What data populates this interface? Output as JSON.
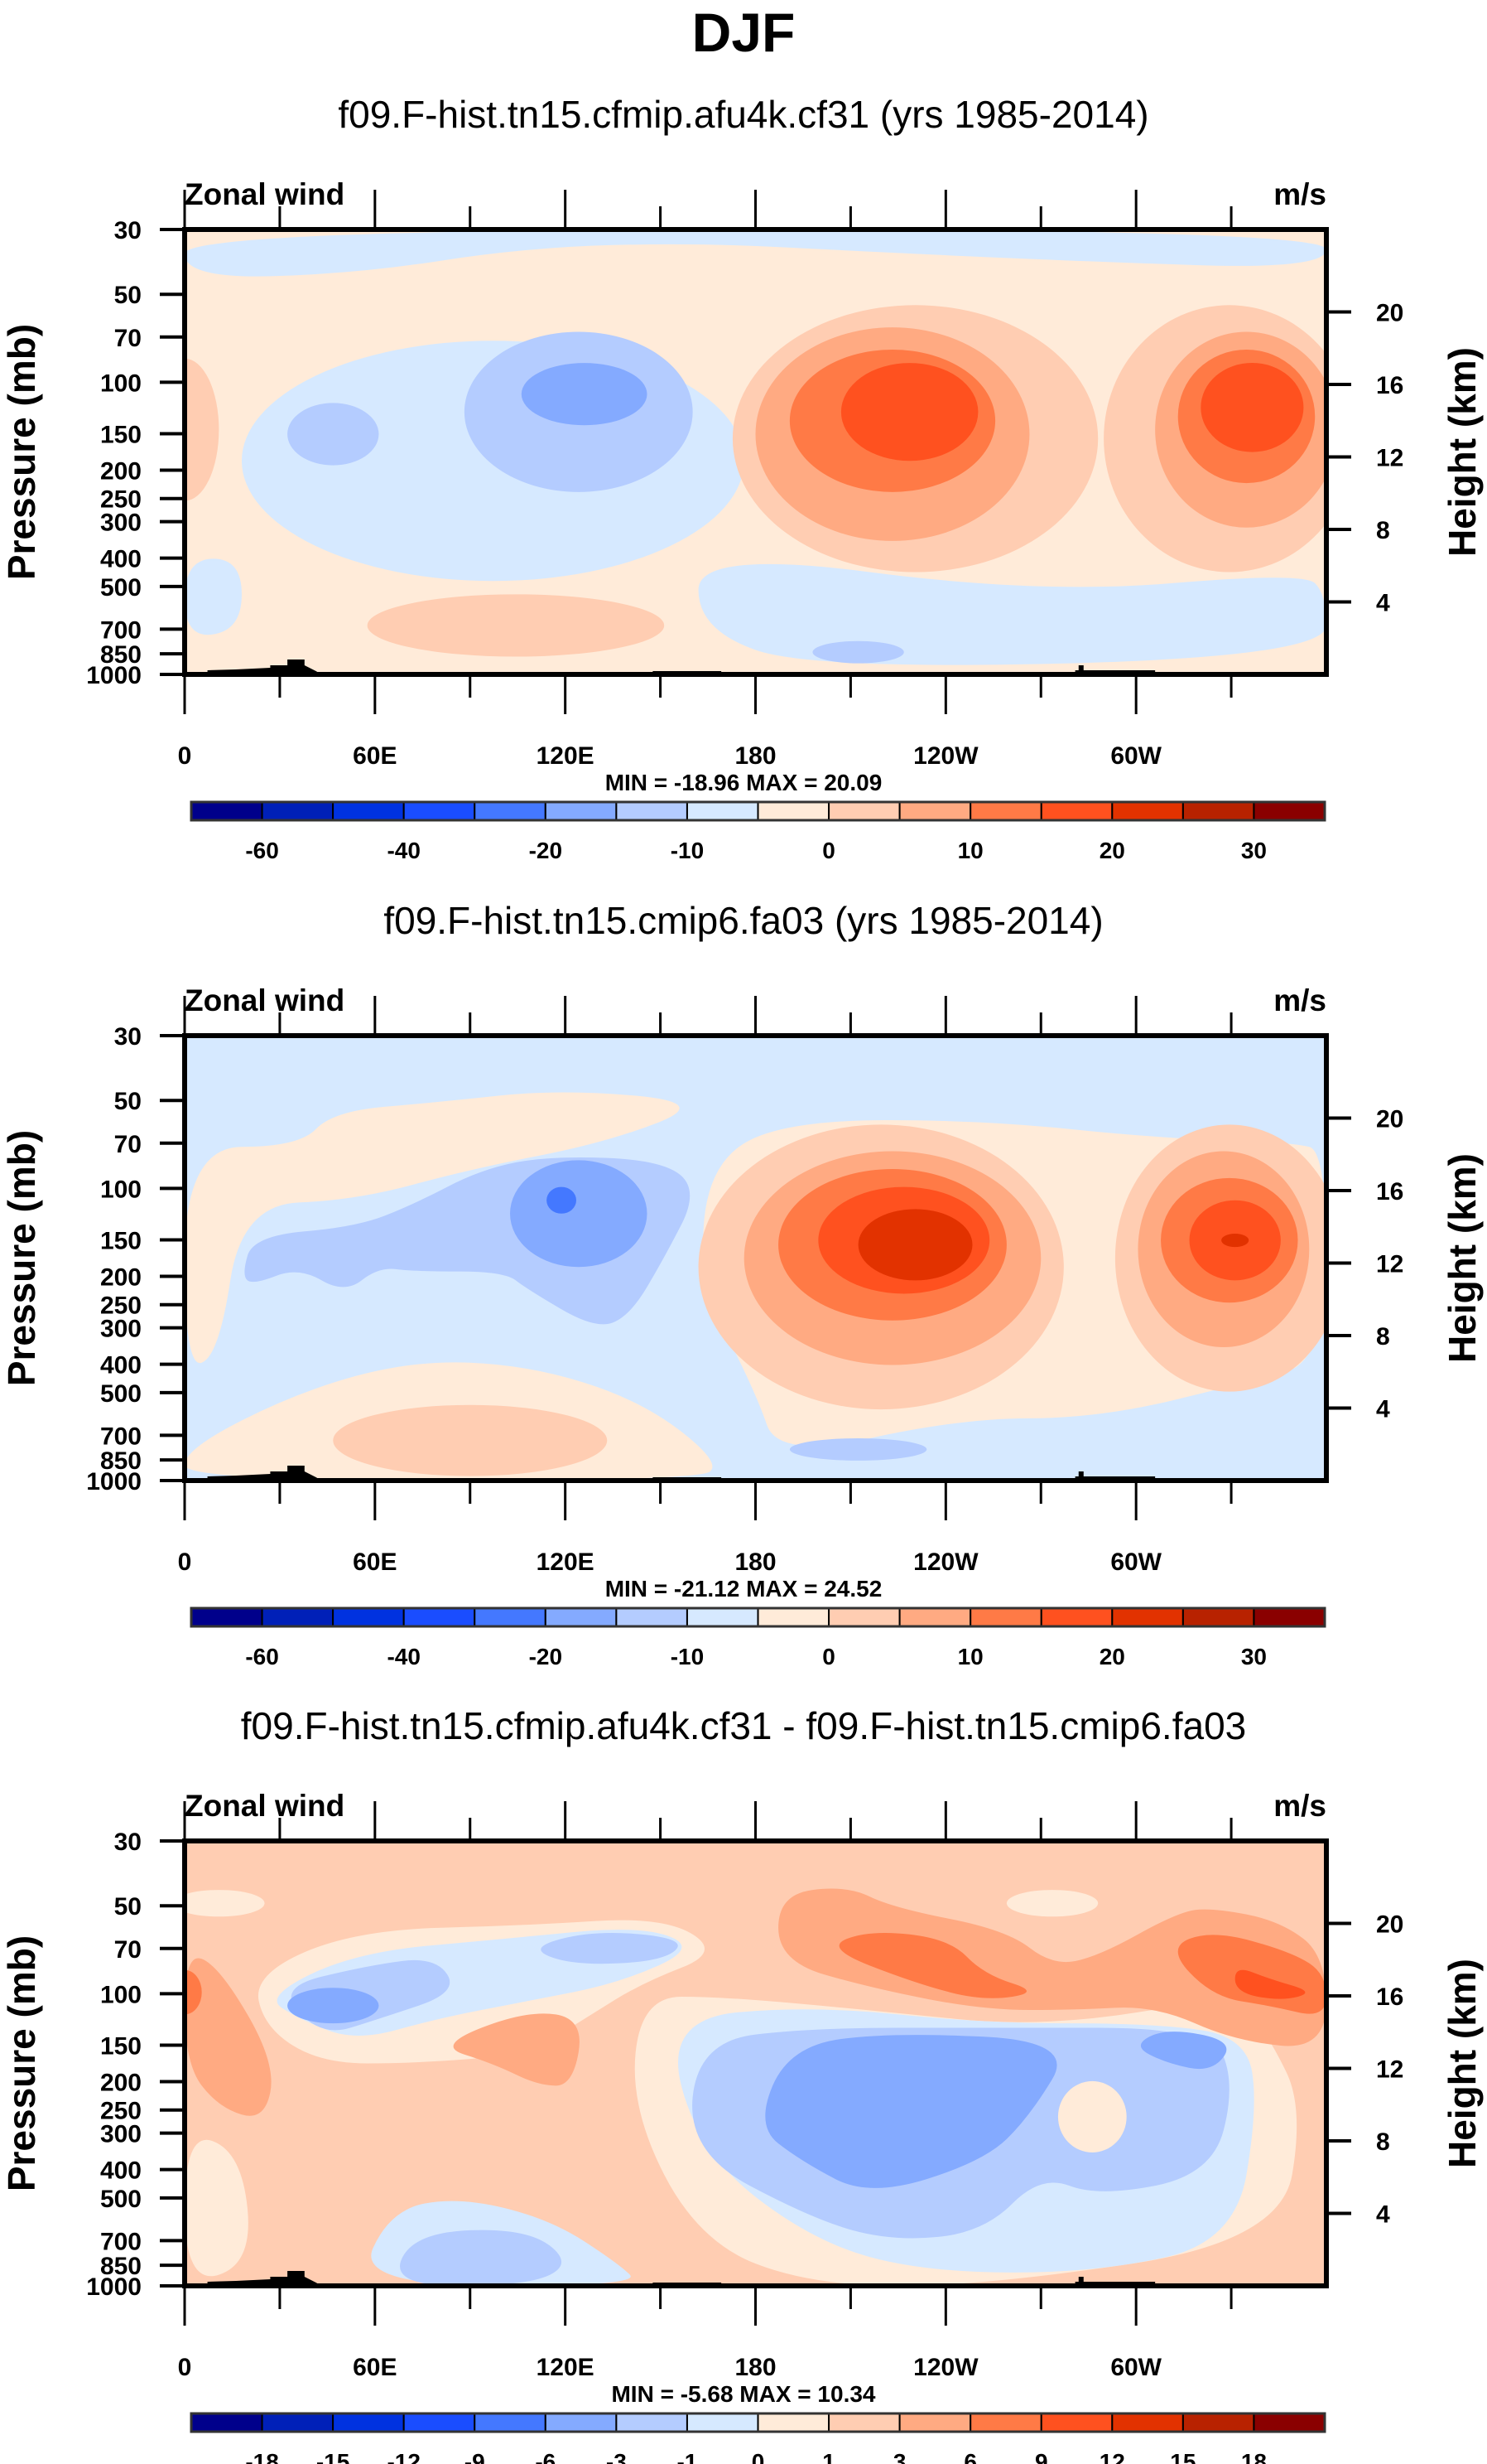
{
  "figure_title": "DJF",
  "chart_data": [
    {
      "type": "heatmap",
      "subtype": "filled-contour (longitude-pressure cross section)",
      "title": "f09.F-hist.tn15.cfmip.afu4k.cf31 (yrs 1985-2014)",
      "left_string": "Zonal wind",
      "right_string": "m/s",
      "xlabel": "",
      "ylabel": "Pressure (mb)",
      "ylabel_right": "Height (km)",
      "x_ticks": [
        "0",
        "60E",
        "120E",
        "180",
        "120W",
        "60W"
      ],
      "x_range_deg": [
        0,
        360
      ],
      "y_ticks": [
        "30",
        "50",
        "70",
        "100",
        "150",
        "200",
        "250",
        "300",
        "400",
        "500",
        "700",
        "850",
        "1000"
      ],
      "y_range_mb": [
        30,
        1000
      ],
      "y_right_ticks": [
        "20",
        "16",
        "12",
        "8",
        "4"
      ],
      "stats": "MIN = -18.96  MAX =  20.09",
      "min": -18.96,
      "max": 20.09,
      "colorbar": {
        "levels": [
          -60,
          -50,
          -40,
          -30,
          -20,
          -15,
          -10,
          -5,
          0,
          5,
          10,
          15,
          20,
          25,
          30
        ],
        "labels": [
          "-60",
          "-40",
          "-20",
          "-10",
          "0",
          "10",
          "20",
          "30"
        ],
        "label_every": 2
      },
      "features": [
        {
          "name": "westerly jet core east Pacific",
          "lon": 200,
          "p": 150,
          "value_range": [
            15,
            20
          ]
        },
        {
          "name": "westerly jet core Atlantic",
          "lon": 330,
          "p": 150,
          "value_range": [
            15,
            20
          ]
        },
        {
          "name": "easterly core west Pacific",
          "lon": 120,
          "p": 110,
          "value_range": [
            -15,
            -10
          ]
        },
        {
          "name": "easterly patch Indian Ocean",
          "lon": 40,
          "p": 150,
          "value_range": [
            -10,
            -5
          ]
        }
      ]
    },
    {
      "type": "heatmap",
      "subtype": "filled-contour (longitude-pressure cross section)",
      "title": "f09.F-hist.tn15.cmip6.fa03 (yrs 1985-2014)",
      "left_string": "Zonal wind",
      "right_string": "m/s",
      "xlabel": "",
      "ylabel": "Pressure (mb)",
      "ylabel_right": "Height (km)",
      "x_ticks": [
        "0",
        "60E",
        "120E",
        "180",
        "120W",
        "60W"
      ],
      "x_range_deg": [
        0,
        360
      ],
      "y_ticks": [
        "30",
        "50",
        "70",
        "100",
        "150",
        "200",
        "250",
        "300",
        "400",
        "500",
        "700",
        "850",
        "1000"
      ],
      "y_range_mb": [
        30,
        1000
      ],
      "y_right_ticks": [
        "20",
        "16",
        "12",
        "8",
        "4"
      ],
      "stats": "MIN = -21.12  MAX =  24.52",
      "min": -21.12,
      "max": 24.52,
      "colorbar": {
        "levels": [
          -60,
          -50,
          -40,
          -30,
          -20,
          -15,
          -10,
          -5,
          0,
          5,
          10,
          15,
          20,
          25,
          30
        ],
        "labels": [
          "-60",
          "-40",
          "-20",
          "-10",
          "0",
          "10",
          "20",
          "30"
        ],
        "label_every": 2
      },
      "features": [
        {
          "name": "westerly jet core east Pacific",
          "lon": 205,
          "p": 150,
          "value_range": [
            20,
            25
          ]
        },
        {
          "name": "westerly jet core Atlantic",
          "lon": 330,
          "p": 150,
          "value_range": [
            20,
            25
          ]
        },
        {
          "name": "easterly core west Pacific",
          "lon": 118,
          "p": 100,
          "value_range": [
            -20,
            -15
          ]
        }
      ]
    },
    {
      "type": "heatmap",
      "subtype": "filled-contour difference (longitude-pressure cross section)",
      "title": "f09.F-hist.tn15.cfmip.afu4k.cf31 - f09.F-hist.tn15.cmip6.fa03",
      "left_string": "Zonal wind",
      "right_string": "m/s",
      "xlabel": "",
      "ylabel": "Pressure (mb)",
      "ylabel_right": "Height (km)",
      "x_ticks": [
        "0",
        "60E",
        "120E",
        "180",
        "120W",
        "60W"
      ],
      "x_range_deg": [
        0,
        360
      ],
      "y_ticks": [
        "30",
        "50",
        "70",
        "100",
        "150",
        "200",
        "250",
        "300",
        "400",
        "500",
        "700",
        "850",
        "1000"
      ],
      "y_range_mb": [
        30,
        1000
      ],
      "y_right_ticks": [
        "20",
        "16",
        "12",
        "8",
        "4"
      ],
      "stats": "MIN = -5.68  MAX = 10.34",
      "min": -5.68,
      "max": 10.34,
      "colorbar": {
        "levels": [
          -18,
          -15,
          -12,
          -9,
          -6,
          -3,
          -1,
          0,
          1,
          3,
          6,
          9,
          12,
          15,
          18
        ],
        "labels": [
          "-18",
          "-15",
          "-12",
          "-9",
          "-6",
          "-3",
          "-1",
          "0",
          "1",
          "3",
          "6",
          "9",
          "12",
          "15",
          "18"
        ],
        "label_every": 1
      },
      "features": [
        {
          "name": "positive band upper troposphere east Pacific",
          "lon": 210,
          "p": 80,
          "value_range": [
            6,
            9
          ]
        },
        {
          "name": "positive band Atlantic",
          "lon": 335,
          "p": 100,
          "value_range": [
            9,
            12
          ]
        },
        {
          "name": "negative region central Pacific",
          "lon": 210,
          "p": 300,
          "value_range": [
            -6,
            -3
          ]
        },
        {
          "name": "negative patch Indian Ocean",
          "lon": 40,
          "p": 100,
          "value_range": [
            -6,
            -3
          ]
        }
      ]
    }
  ],
  "colormap": [
    "#00008b",
    "#0020b8",
    "#0032e0",
    "#1a4dff",
    "#4478ff",
    "#84aaff",
    "#b4ccff",
    "#d6e9ff",
    "#ffebd9",
    "#ffcdb2",
    "#ffaa82",
    "#ff7a46",
    "#ff511f",
    "#e23200",
    "#b82200",
    "#8a0000"
  ]
}
